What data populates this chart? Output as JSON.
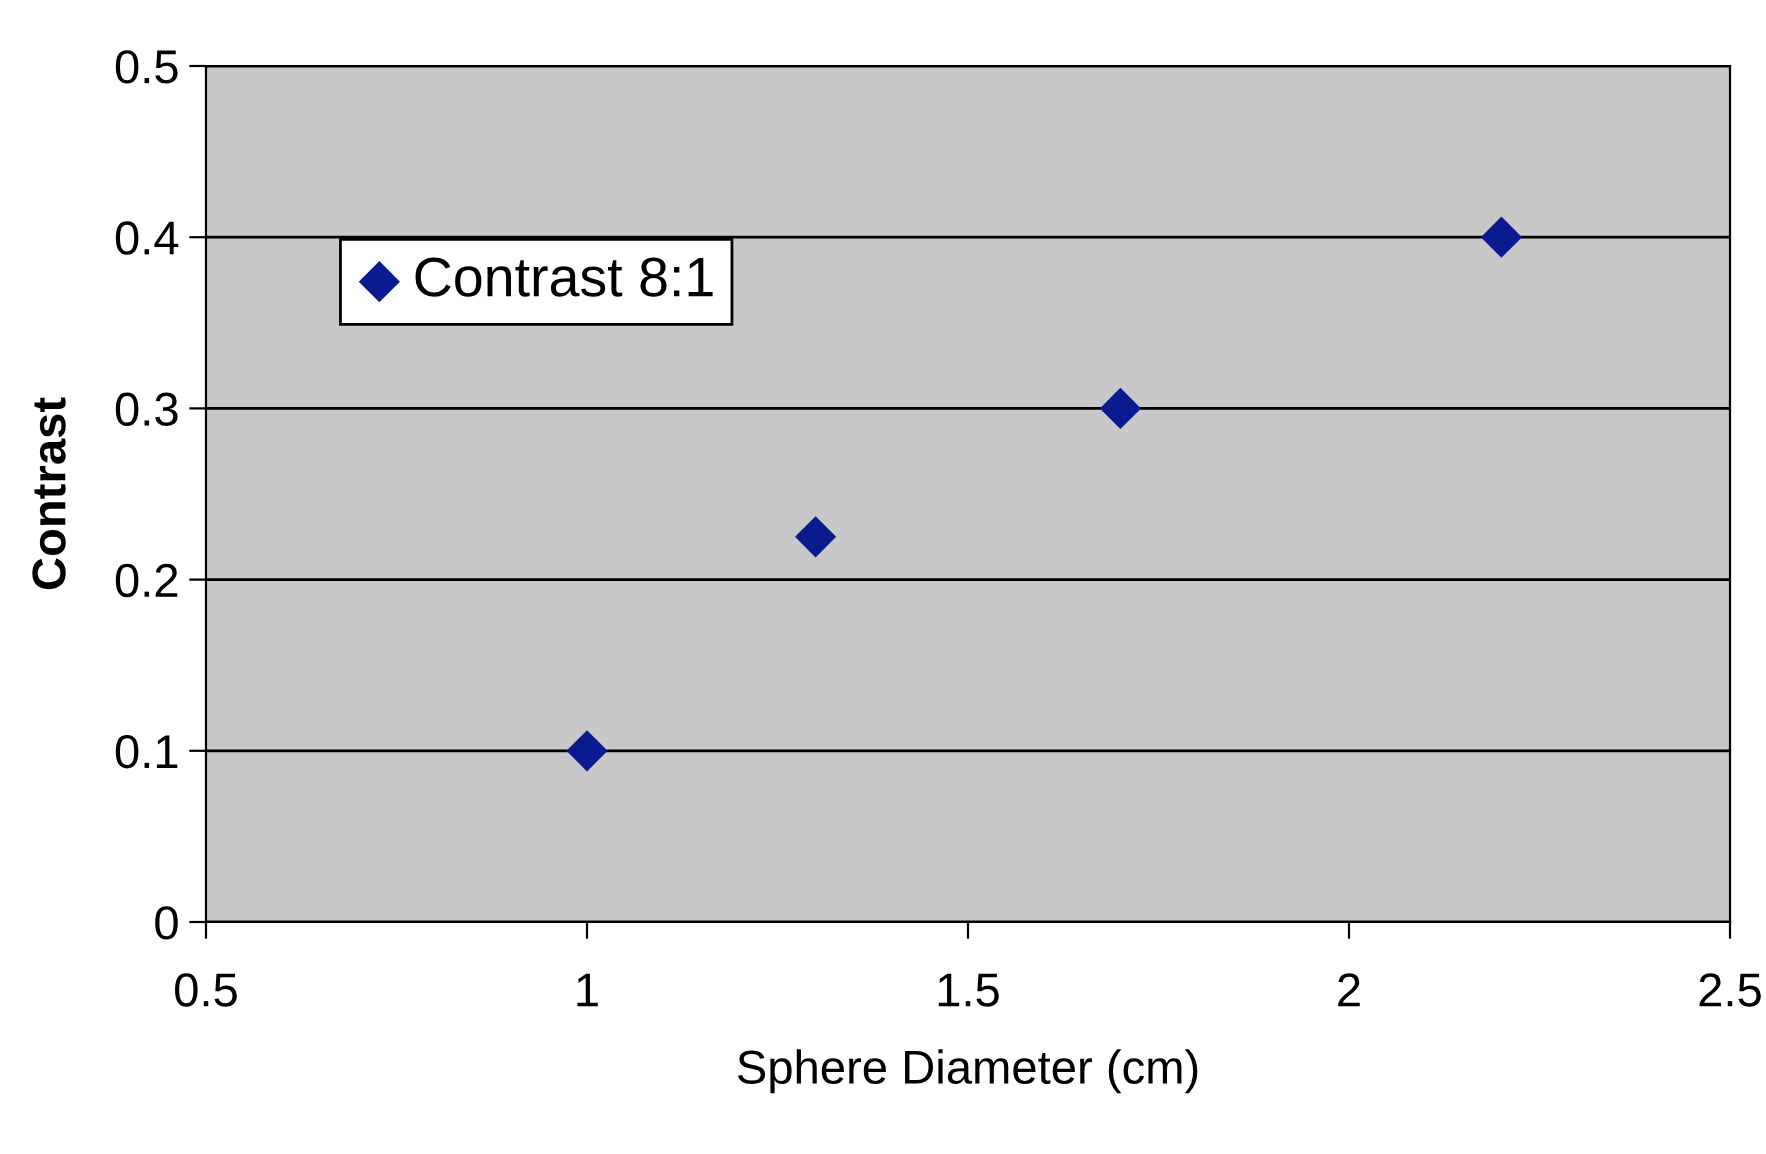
{
  "chart_data": {
    "type": "scatter",
    "xlabel": "Sphere Diameter (cm)",
    "ylabel": "Contrast",
    "x": [
      1,
      1.3,
      1.7,
      2.2
    ],
    "series": [
      {
        "name": "Contrast 8:1",
        "color": "#0a1a8f",
        "values": [
          0.1,
          0.225,
          0.3,
          0.4
        ]
      }
    ],
    "xlim": [
      0.5,
      2.5
    ],
    "xticks": [
      0.5,
      1,
      1.5,
      2,
      2.5
    ],
    "ylim": [
      0,
      0.5
    ],
    "yticks": [
      0,
      0.1,
      0.2,
      0.3,
      0.4,
      0.5
    ],
    "grid": "y",
    "legend": "top left",
    "marker": "diamond"
  }
}
